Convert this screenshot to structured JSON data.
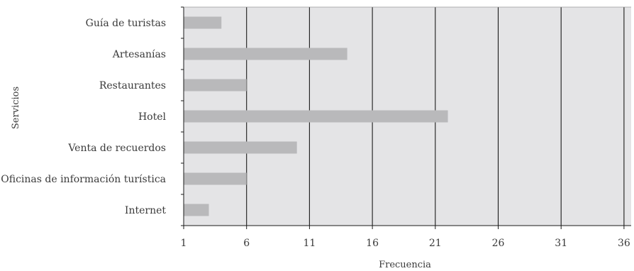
{
  "chart_data": {
    "type": "bar",
    "orientation": "horizontal",
    "title": "",
    "xlabel": "Frecuencia",
    "ylabel": "Servicios",
    "categories": [
      "Guía de turistas",
      "Artesanías",
      "Restaurantes",
      "Hotel",
      "Venta de recuerdos",
      "Oficinas de información turística",
      "Internet"
    ],
    "values": [
      4,
      14,
      6,
      22,
      10,
      6,
      3
    ],
    "xlim": [
      1,
      37
    ],
    "xticks": [
      1,
      6,
      11,
      16,
      21,
      26,
      31,
      36
    ],
    "grid": "vertical",
    "legend": "none",
    "colors": {
      "bar": "#b9b9bb",
      "plot_background": "#e4e4e6",
      "gridline": "#1a1a1a",
      "axis": "#1a1a1a"
    }
  }
}
